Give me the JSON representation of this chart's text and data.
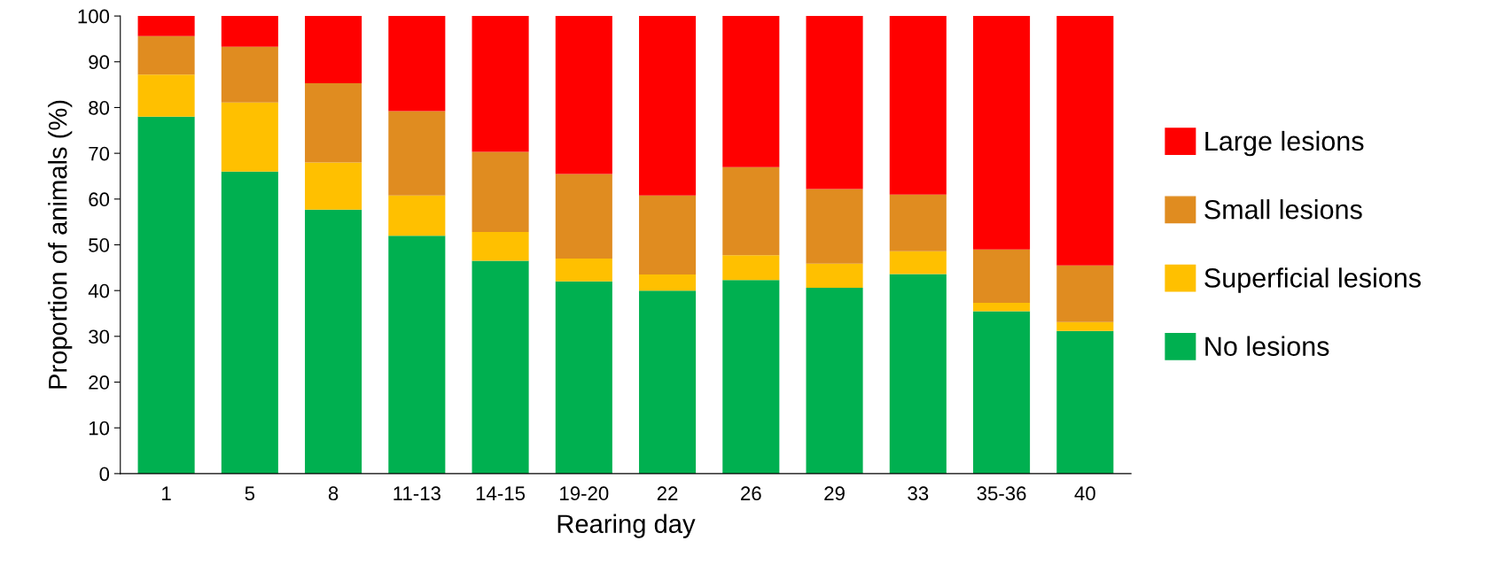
{
  "chart_data": {
    "type": "bar",
    "stacked": true,
    "xlabel": "Rearing day",
    "ylabel": "Proportion of animals (%)",
    "categories": [
      "1",
      "5",
      "8",
      "11-13",
      "14-15",
      "19-20",
      "22",
      "26",
      "29",
      "33",
      "35-36",
      "40"
    ],
    "series": [
      {
        "name": "No lesions",
        "color": "#00b050",
        "values": [
          78,
          66,
          57.7,
          52,
          46.5,
          42,
          40,
          42.3,
          40.6,
          43.6,
          35.5,
          31.2
        ]
      },
      {
        "name": "Superficial lesions",
        "color": "#ffc000",
        "values": [
          9.2,
          15.1,
          10.3,
          8.8,
          6.3,
          5,
          3.5,
          5.4,
          5.3,
          5,
          1.8,
          1.9
        ]
      },
      {
        "name": "Small lesions",
        "color": "#e08c20",
        "values": [
          8.4,
          12.2,
          17.3,
          18.4,
          17.5,
          18.5,
          17.3,
          19.3,
          16.3,
          12.4,
          11.7,
          12.4
        ]
      },
      {
        "name": "Large lesions",
        "color": "#ff0000",
        "values": [
          4.4,
          6.7,
          14.7,
          20.8,
          29.7,
          34.5,
          39.2,
          33,
          37.8,
          39,
          51,
          54.5
        ]
      }
    ],
    "ylim": [
      0,
      100
    ],
    "yticks": [
      0,
      10,
      20,
      30,
      40,
      50,
      60,
      70,
      80,
      90,
      100
    ],
    "grid": false,
    "legend": "right"
  }
}
